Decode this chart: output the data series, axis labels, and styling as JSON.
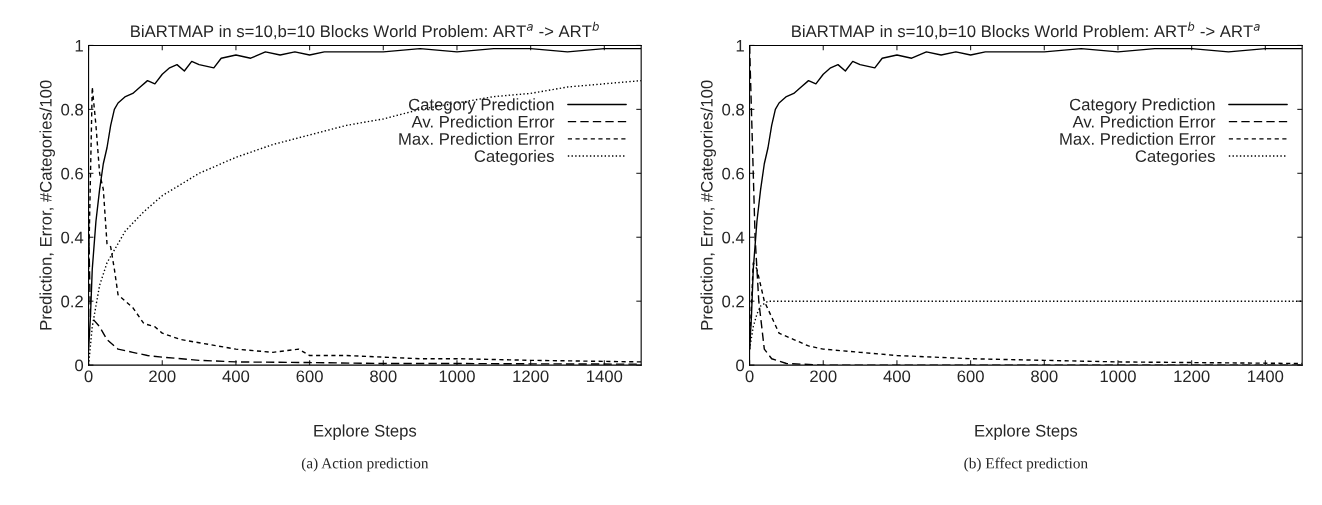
{
  "chart_data": [
    {
      "type": "line",
      "title": "BiARTMAP in s=10,b=10 Blocks World Problem: ART$^{a}$ -> ART$^{b}$",
      "xlabel": "Explore Steps",
      "ylabel": "Prediction, Error, #Categories/100",
      "xlim": [
        0,
        1500
      ],
      "ylim": [
        0,
        1
      ],
      "xticks": [
        0,
        200,
        400,
        600,
        800,
        1000,
        1200,
        1400
      ],
      "yticks": [
        0,
        0.2,
        0.4,
        0.6,
        0.8,
        1
      ],
      "legend": "right",
      "grid": false,
      "annotations": [
        "(a) Action prediction"
      ],
      "series": [
        {
          "name": "Category Prediction",
          "color": "#000000",
          "line_style": "solid",
          "x": [
            0,
            5,
            10,
            20,
            30,
            40,
            50,
            60,
            70,
            80,
            100,
            120,
            140,
            160,
            180,
            200,
            220,
            240,
            260,
            280,
            300,
            340,
            360,
            400,
            440,
            480,
            520,
            560,
            600,
            640,
            700,
            800,
            900,
            1000,
            1100,
            1200,
            1300,
            1400,
            1500
          ],
          "values": [
            0.05,
            0.15,
            0.3,
            0.45,
            0.55,
            0.63,
            0.68,
            0.75,
            0.8,
            0.82,
            0.84,
            0.85,
            0.87,
            0.89,
            0.88,
            0.91,
            0.93,
            0.94,
            0.92,
            0.95,
            0.94,
            0.93,
            0.96,
            0.97,
            0.96,
            0.98,
            0.97,
            0.98,
            0.97,
            0.98,
            0.98,
            0.98,
            0.99,
            0.98,
            0.99,
            0.99,
            0.98,
            0.99,
            0.99
          ]
        },
        {
          "name": "Av. Prediction Error",
          "color": "#000000",
          "line_style": "dashed",
          "x": [
            0,
            5,
            15,
            30,
            50,
            80,
            120,
            160,
            200,
            300,
            400,
            600,
            800,
            1000,
            1200,
            1500
          ],
          "values": [
            0.45,
            0.15,
            0.14,
            0.12,
            0.08,
            0.05,
            0.04,
            0.03,
            0.025,
            0.015,
            0.01,
            0.008,
            0.005,
            0.005,
            0.004,
            0.003
          ]
        },
        {
          "name": "Max. Prediction Error",
          "color": "#000000",
          "line_style": "dashed",
          "x": [
            0,
            10,
            20,
            30,
            40,
            50,
            60,
            70,
            80,
            100,
            120,
            150,
            180,
            200,
            250,
            300,
            350,
            400,
            500,
            570,
            600,
            700,
            800,
            900,
            1000,
            1200,
            1500
          ],
          "values": [
            0.3,
            0.87,
            0.75,
            0.6,
            0.55,
            0.38,
            0.37,
            0.3,
            0.22,
            0.2,
            0.18,
            0.13,
            0.12,
            0.1,
            0.08,
            0.07,
            0.06,
            0.05,
            0.04,
            0.05,
            0.03,
            0.03,
            0.025,
            0.02,
            0.02,
            0.015,
            0.01
          ]
        },
        {
          "name": "Categories",
          "color": "#000000",
          "line_style": "dotted",
          "x": [
            0,
            10,
            30,
            50,
            100,
            150,
            200,
            300,
            400,
            500,
            600,
            700,
            800,
            900,
            1000,
            1100,
            1200,
            1300,
            1400,
            1500
          ],
          "values": [
            0,
            0.12,
            0.25,
            0.32,
            0.42,
            0.48,
            0.53,
            0.6,
            0.65,
            0.69,
            0.72,
            0.75,
            0.77,
            0.8,
            0.82,
            0.84,
            0.85,
            0.87,
            0.88,
            0.89
          ]
        }
      ]
    },
    {
      "type": "line",
      "title": "BiARTMAP in s=10,b=10 Blocks World Problem: ART$^{b}$ -> ART$^{a}$",
      "xlabel": "Explore Steps",
      "ylabel": "Prediction, Error, #Categories/100",
      "xlim": [
        0,
        1500
      ],
      "ylim": [
        0,
        1
      ],
      "xticks": [
        0,
        200,
        400,
        600,
        800,
        1000,
        1200,
        1400
      ],
      "yticks": [
        0,
        0.2,
        0.4,
        0.6,
        0.8,
        1
      ],
      "legend": "right",
      "grid": false,
      "annotations": [
        "(b) Effect prediction"
      ],
      "series": [
        {
          "name": "Category Prediction",
          "color": "#000000",
          "line_style": "solid",
          "x": [
            0,
            5,
            10,
            20,
            30,
            40,
            50,
            60,
            70,
            80,
            100,
            120,
            140,
            160,
            180,
            200,
            220,
            240,
            260,
            280,
            300,
            340,
            360,
            400,
            440,
            480,
            520,
            560,
            600,
            640,
            700,
            800,
            900,
            1000,
            1100,
            1200,
            1300,
            1400,
            1500
          ],
          "values": [
            0.05,
            0.15,
            0.3,
            0.45,
            0.55,
            0.63,
            0.68,
            0.75,
            0.8,
            0.82,
            0.84,
            0.85,
            0.87,
            0.89,
            0.88,
            0.91,
            0.93,
            0.94,
            0.92,
            0.95,
            0.94,
            0.93,
            0.96,
            0.97,
            0.96,
            0.98,
            0.97,
            0.98,
            0.97,
            0.98,
            0.98,
            0.98,
            0.99,
            0.98,
            0.99,
            0.99,
            0.98,
            0.99,
            0.99
          ]
        },
        {
          "name": "Av. Prediction Error",
          "color": "#000000",
          "line_style": "dashed",
          "x": [
            0,
            5,
            15,
            25,
            40,
            60,
            100,
            200,
            1500
          ],
          "values": [
            1,
            0.8,
            0.4,
            0.2,
            0.05,
            0.02,
            0.005,
            0,
            0
          ]
        },
        {
          "name": "Max. Prediction Error",
          "color": "#000000",
          "line_style": "dashed",
          "x": [
            0,
            10,
            20,
            30,
            40,
            60,
            80,
            120,
            160,
            200,
            300,
            400,
            600,
            800,
            1000,
            1500
          ],
          "values": [
            0.05,
            0.32,
            0.3,
            0.25,
            0.2,
            0.15,
            0.1,
            0.08,
            0.06,
            0.05,
            0.04,
            0.03,
            0.02,
            0.015,
            0.01,
            0.005
          ]
        },
        {
          "name": "Categories",
          "color": "#000000",
          "line_style": "dotted",
          "x": [
            0,
            10,
            20,
            30,
            50,
            100,
            1500
          ],
          "values": [
            0.05,
            0.12,
            0.16,
            0.185,
            0.2,
            0.2,
            0.2
          ]
        }
      ]
    }
  ]
}
